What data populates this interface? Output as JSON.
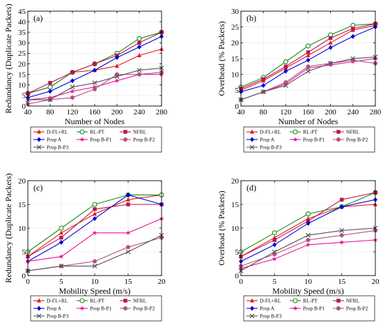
{
  "figure": {
    "legend_labels": [
      "D-FL+RL",
      "RL-PT",
      "NFRL",
      "Prop A",
      "Prop B-P1",
      "Prop B-P2",
      "Prop B-P3"
    ]
  },
  "chart_data": [
    {
      "type": "line",
      "panel_label": "(a)",
      "xlabel": "Number of Nodes",
      "ylabel": "Redundancy (Duplicate Packets)",
      "x": [
        40,
        80,
        120,
        160,
        200,
        240,
        280
      ],
      "xlim": [
        40,
        280
      ],
      "ylim": [
        0,
        45
      ],
      "xticks": [
        40,
        80,
        120,
        160,
        200,
        240,
        280
      ],
      "yticks": [
        0,
        5,
        10,
        15,
        20,
        25,
        30,
        35,
        40,
        45
      ],
      "grid": true,
      "legend_position": "below",
      "series": [
        {
          "name": "D-FL+RL",
          "color": "#e41a1c",
          "marker": "triangle",
          "values": [
            6,
            9,
            16,
            17,
            19,
            24,
            27
          ]
        },
        {
          "name": "RL-PT",
          "color": "#1a8a1a",
          "marker": "circle-open",
          "values": [
            6,
            9,
            16,
            20,
            25,
            32,
            35
          ]
        },
        {
          "name": "NFRL",
          "color": "#b5174b",
          "marker": "square",
          "values": [
            6,
            11,
            16,
            20,
            24,
            30,
            35
          ]
        },
        {
          "name": "Prop A",
          "color": "#0000dd",
          "marker": "diamond",
          "values": [
            4,
            7,
            12,
            17,
            23,
            28,
            33
          ]
        },
        {
          "name": "Prop B-P1",
          "color": "#ee1493",
          "marker": "star",
          "values": [
            3,
            4,
            7,
            9,
            12,
            15,
            15
          ]
        },
        {
          "name": "Prop B-P2",
          "color": "#b0508a",
          "marker": "circle",
          "values": [
            1,
            3,
            4,
            8,
            15,
            15,
            16
          ]
        },
        {
          "name": "Prop B-P3",
          "color": "#555555",
          "marker": "x",
          "values": [
            3,
            3,
            9,
            11,
            14,
            17,
            18
          ]
        }
      ]
    },
    {
      "type": "line",
      "panel_label": "(b)",
      "xlabel": "Number of Nodes",
      "ylabel": "Overhead (% Packets)",
      "x": [
        40,
        80,
        120,
        160,
        200,
        240,
        280
      ],
      "xlim": [
        40,
        280
      ],
      "ylim": [
        0,
        30
      ],
      "xticks": [
        40,
        80,
        120,
        160,
        200,
        240,
        280
      ],
      "yticks": [
        0,
        5,
        10,
        15,
        20,
        25,
        30
      ],
      "grid": true,
      "legend_position": "below",
      "series": [
        {
          "name": "D-FL+RL",
          "color": "#e41a1c",
          "marker": "triangle",
          "values": [
            5,
            8,
            12,
            16,
            20,
            24,
            25.5
          ]
        },
        {
          "name": "RL-PT",
          "color": "#1a8a1a",
          "marker": "circle-open",
          "values": [
            6,
            9,
            14,
            19,
            22.5,
            25.5,
            26
          ]
        },
        {
          "name": "NFRL",
          "color": "#b5174b",
          "marker": "square",
          "values": [
            5.5,
            8.5,
            12.5,
            17,
            21.5,
            24.5,
            26
          ]
        },
        {
          "name": "Prop A",
          "color": "#0000dd",
          "marker": "diamond",
          "values": [
            4.5,
            6.5,
            11,
            14.5,
            18.5,
            22,
            25
          ]
        },
        {
          "name": "Prop B-P1",
          "color": "#ee1493",
          "marker": "star",
          "values": [
            2,
            4.5,
            7,
            12,
            13,
            14,
            15
          ]
        },
        {
          "name": "Prop B-P2",
          "color": "#b0508a",
          "marker": "circle",
          "values": [
            2,
            4.5,
            7.5,
            12.5,
            13.5,
            14.5,
            13.5
          ]
        },
        {
          "name": "Prop B-P3",
          "color": "#555555",
          "marker": "x",
          "values": [
            2,
            4.5,
            6.5,
            11,
            13.5,
            15,
            15.5
          ]
        }
      ]
    },
    {
      "type": "line",
      "panel_label": "(c)",
      "xlabel": "Mobility Speed (m/s)",
      "ylabel": "Redundancy (Duplicate Packets)",
      "x": [
        0,
        5,
        10,
        15,
        20
      ],
      "xlim": [
        0,
        20
      ],
      "ylim": [
        0,
        20
      ],
      "xticks": [
        0,
        5,
        10,
        15,
        20
      ],
      "yticks": [
        0,
        5,
        10,
        15,
        20
      ],
      "grid": true,
      "legend_position": "below",
      "series": [
        {
          "name": "D-FL+RL",
          "color": "#e41a1c",
          "marker": "triangle",
          "values": [
            4,
            9,
            13,
            16,
            17
          ]
        },
        {
          "name": "RL-PT",
          "color": "#1a8a1a",
          "marker": "circle-open",
          "values": [
            5,
            10,
            15,
            17,
            17
          ]
        },
        {
          "name": "NFRL",
          "color": "#b5174b",
          "marker": "square",
          "values": [
            4,
            8,
            14,
            15,
            15
          ]
        },
        {
          "name": "Prop A",
          "color": "#0000dd",
          "marker": "diamond",
          "values": [
            3,
            7,
            12,
            17,
            15
          ]
        },
        {
          "name": "Prop B-P1",
          "color": "#ee1493",
          "marker": "star",
          "values": [
            3,
            4,
            9,
            9,
            12
          ]
        },
        {
          "name": "Prop B-P2",
          "color": "#b0508a",
          "marker": "circle",
          "values": [
            1,
            2,
            3,
            6,
            8
          ]
        },
        {
          "name": "Prop B-P3",
          "color": "#555555",
          "marker": "x",
          "values": [
            1,
            2,
            2,
            5,
            8.5
          ]
        }
      ]
    },
    {
      "type": "line",
      "panel_label": "(d)",
      "xlabel": "Mobility Speed (m/s)",
      "ylabel": "Overhead (% Packets)",
      "x": [
        0,
        5,
        10,
        15,
        20
      ],
      "xlim": [
        0,
        20
      ],
      "ylim": [
        0,
        20
      ],
      "xticks": [
        0,
        5,
        10,
        15,
        20
      ],
      "yticks": [
        0,
        5,
        10,
        15,
        20
      ],
      "grid": true,
      "legend_position": "below",
      "series": [
        {
          "name": "D-FL+RL",
          "color": "#e41a1c",
          "marker": "triangle",
          "values": [
            4,
            8,
            12,
            14.5,
            15
          ]
        },
        {
          "name": "RL-PT",
          "color": "#1a8a1a",
          "marker": "circle-open",
          "values": [
            5,
            9,
            13,
            14.5,
            17.5
          ]
        },
        {
          "name": "NFRL",
          "color": "#b5174b",
          "marker": "square",
          "values": [
            4,
            7.5,
            11.5,
            16,
            17.5
          ]
        },
        {
          "name": "Prop A",
          "color": "#0000dd",
          "marker": "diamond",
          "values": [
            3,
            6.5,
            11,
            14.5,
            16
          ]
        },
        {
          "name": "Prop B-P1",
          "color": "#ee1493",
          "marker": "star",
          "values": [
            1.5,
            3.5,
            6.5,
            7,
            7.5
          ]
        },
        {
          "name": "Prop B-P2",
          "color": "#b0508a",
          "marker": "circle",
          "values": [
            2,
            4.5,
            7.5,
            8.5,
            9.5
          ]
        },
        {
          "name": "Prop B-P3",
          "color": "#555555",
          "marker": "x",
          "values": [
            1,
            5,
            8.5,
            9.5,
            10
          ]
        }
      ]
    }
  ]
}
